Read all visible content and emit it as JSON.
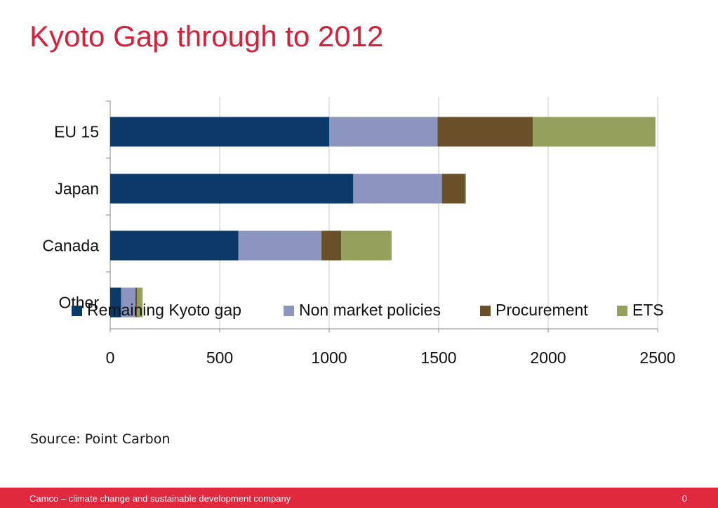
{
  "slide": {
    "title": "Kyoto Gap through to 2012",
    "source": "Source: Point Carbon",
    "footer_text": "Camco – climate change and sustainable development company",
    "page_number": "0"
  },
  "chart_data": {
    "type": "bar",
    "orientation": "horizontal",
    "stacked": true,
    "categories": [
      "EU 15",
      "Japan",
      "Canada",
      "Other"
    ],
    "series": [
      {
        "name": "Remaining Kyoto gap",
        "color": "#0b3a6a",
        "values": [
          1000,
          1110,
          585,
          50
        ]
      },
      {
        "name": "Non market policies",
        "color": "#8b95bd",
        "values": [
          495,
          405,
          380,
          65
        ]
      },
      {
        "name": "Procurement",
        "color": "#6a5028",
        "values": [
          435,
          105,
          90,
          8
        ]
      },
      {
        "name": "ETS",
        "color": "#95a05c",
        "values": [
          560,
          5,
          230,
          25
        ]
      }
    ],
    "x_ticks": [
      "0",
      "500",
      "1000",
      "1500",
      "2000",
      "2500"
    ],
    "xlim": [
      0,
      2500
    ],
    "grid": true,
    "legend_position": "bottom"
  }
}
